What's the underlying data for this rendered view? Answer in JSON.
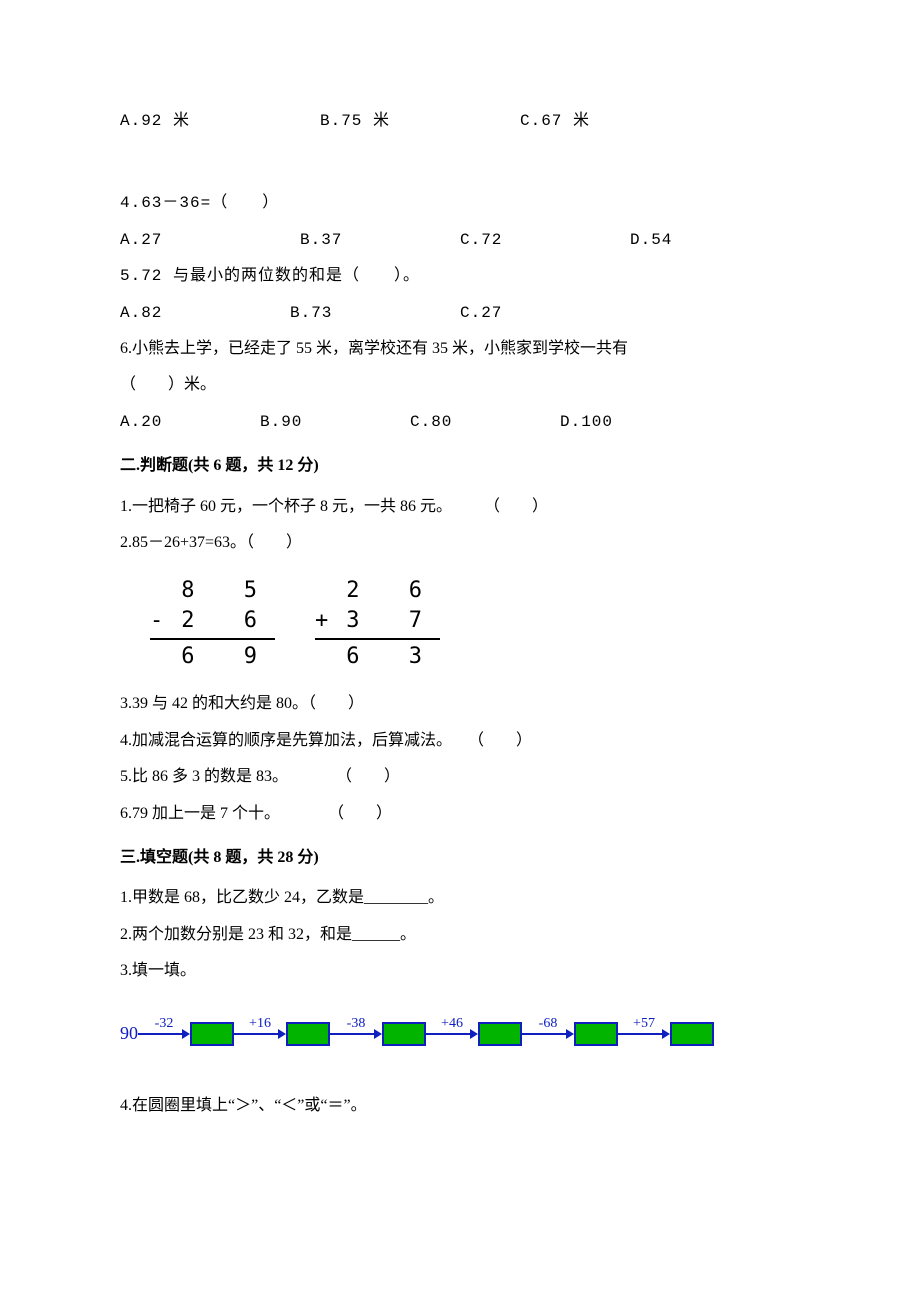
{
  "q3_prev": {
    "opt_a": "A.92 米",
    "opt_b": "B.75 米",
    "opt_c": "C.67 米"
  },
  "q4": {
    "stem": "4.63－36=（　　）",
    "opt_a": "A.27",
    "opt_b": "B.37",
    "opt_c": "C.72",
    "opt_d": "D.54"
  },
  "q5": {
    "stem": "5.72 与最小的两位数的和是（　　）。",
    "opt_a": "A.82",
    "opt_b": "B.73",
    "opt_c": "C.27"
  },
  "q6": {
    "stem1": "6.小熊去上学，已经走了 55 米，离学校还有 35 米，小熊家到学校一共有",
    "stem2": "（　　）米。",
    "opt_a": "A.20",
    "opt_b": "B.90",
    "opt_c": "C.80",
    "opt_d": "D.100"
  },
  "sec2_head": "二.判断题(共 6 题，共 12 分)",
  "s2": {
    "q1": "1.一把椅子 60 元，一个杯子 8 元，一共 86 元。　　　（　　）",
    "q2": "2.85－26+37=63。（　　）",
    "q3": "3.39 与 42 的和大约是 80。（　　）",
    "q4": "4.加减混合运算的顺序是先算加法，后算减法。　　（　　）",
    "q5": "5.比 86 多 3 的数是 83。　　　　（　　）",
    "q6": "6.79 加上一是 7 个十。　　　　（　　）"
  },
  "calc": {
    "c1_r1": " 8 5",
    "c1_r2": "-2 6",
    "c1_r3": " 6 9",
    "c2_r1": " 2 6",
    "c2_r2": "+3 7",
    "c2_r3": " 6 3"
  },
  "sec3_head": "三.填空题(共 8 题，共 28 分)",
  "s3": {
    "q1": "1.甲数是 68，比乙数少 24，乙数是________。",
    "q2": "2.两个加数分别是 23 和 32，和是______。",
    "q3": "3.填一填。",
    "q4": "4.在圆圈里填上“＞”、“＜”或“＝”。"
  },
  "chain": {
    "start": "90",
    "ops": [
      "-32",
      "+16",
      "-38",
      "+46",
      "-68",
      "+57"
    ],
    "box_fill": "#00b400",
    "line_color": "#1020c0"
  }
}
